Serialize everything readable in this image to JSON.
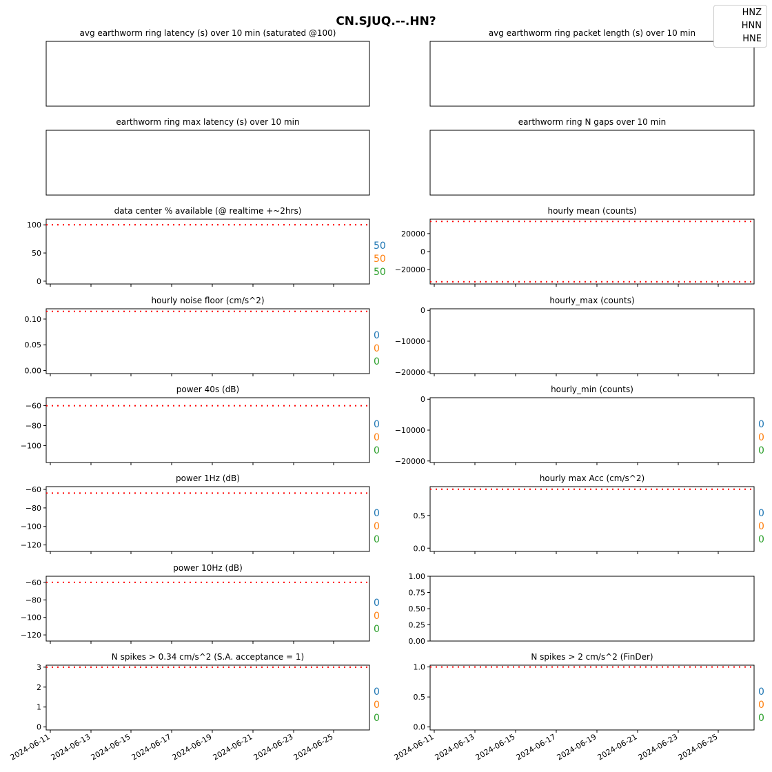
{
  "title": "CN.SJUQ.--.HN?",
  "legend": [
    "HNZ",
    "HNN",
    "HNE"
  ],
  "colors": {
    "HNZ": "#1f77b4",
    "HNN": "#ff7f0e",
    "HNE": "#2ca02c",
    "threshold": "#ff0000"
  },
  "chart_data": [
    {
      "type": "line",
      "title": "avg earthworm ring latency (s)   over 10 min (saturated @100)",
      "series": []
    },
    {
      "type": "line",
      "title": "avg earthworm ring packet length (s)   over 10 min",
      "series": []
    },
    {
      "type": "line",
      "title": "earthworm ring max latency (s)   over 10 min",
      "series": []
    },
    {
      "type": "line",
      "title": "earthworm ring N gaps   over 10 min",
      "series": []
    },
    {
      "type": "line",
      "title": "data center % available (@ realtime +~2hrs)",
      "ylim": [
        -5,
        110
      ],
      "yticks": [
        0,
        50,
        100
      ],
      "yticklabels": [
        "0",
        "50",
        "100"
      ],
      "threshold": [
        100
      ],
      "series": [],
      "channel_values": [
        "50",
        "50",
        "50"
      ]
    },
    {
      "type": "line",
      "title": "hourly mean (counts)",
      "ylim": [
        -36000,
        36000
      ],
      "yticks": [
        -20000,
        0,
        20000
      ],
      "yticklabels": [
        "−20000",
        "0",
        "20000"
      ],
      "threshold": [
        33500,
        -33500
      ],
      "series": []
    },
    {
      "type": "line",
      "title": "hourly noise floor (cm/s^2)",
      "ylim": [
        -0.006,
        0.12
      ],
      "yticks": [
        0.0,
        0.05,
        0.1
      ],
      "yticklabels": [
        "0.00",
        "0.05",
        "0.10"
      ],
      "threshold": [
        0.115
      ],
      "series": [],
      "channel_values": [
        "0",
        "0",
        "0"
      ]
    },
    {
      "type": "line",
      "title": "hourly_max (counts)",
      "ylim": [
        -20500,
        500
      ],
      "yticks": [
        -20000,
        -10000,
        0
      ],
      "yticklabels": [
        "−20000",
        "−10000",
        "0"
      ],
      "series": []
    },
    {
      "type": "line",
      "title": "power 40s (dB)",
      "ylim": [
        -117,
        -52
      ],
      "yticks": [
        -100,
        -80,
        -60
      ],
      "yticklabels": [
        "−100",
        "−80",
        "−60"
      ],
      "threshold": [
        -60
      ],
      "series": [],
      "channel_values": [
        "0",
        "0",
        "0"
      ]
    },
    {
      "type": "line",
      "title": "hourly_min (counts)",
      "ylim": [
        -20500,
        500
      ],
      "yticks": [
        -20000,
        -10000,
        0
      ],
      "yticklabels": [
        "−20000",
        "−10000",
        "0"
      ],
      "series": [],
      "channel_values": [
        "0",
        "0",
        "0"
      ]
    },
    {
      "type": "line",
      "title": "power 1Hz (dB)",
      "ylim": [
        -127,
        -57
      ],
      "yticks": [
        -120,
        -100,
        -80,
        -60
      ],
      "yticklabels": [
        "−120",
        "−100",
        "−80",
        "−60"
      ],
      "threshold": [
        -64
      ],
      "series": [],
      "channel_values": [
        "0",
        "0",
        "0"
      ]
    },
    {
      "type": "line",
      "title": "hourly max Acc (cm/s^2)",
      "ylim": [
        -0.05,
        0.94
      ],
      "yticks": [
        0.0,
        0.5
      ],
      "yticklabels": [
        "0.0",
        "0.5"
      ],
      "threshold": [
        0.9
      ],
      "series": [],
      "channel_values": [
        "0",
        "0",
        "0"
      ]
    },
    {
      "type": "line",
      "title": "power 10Hz (dB)",
      "ylim": [
        -127,
        -53
      ],
      "yticks": [
        -120,
        -100,
        -80,
        -60
      ],
      "yticklabels": [
        "−120",
        "−100",
        "−80",
        "−60"
      ],
      "threshold": [
        -60
      ],
      "series": [],
      "channel_values": [
        "0",
        "0",
        "0"
      ]
    },
    {
      "type": "line",
      "title": "",
      "ylim": [
        0,
        1
      ],
      "yticks": [
        0,
        0.25,
        0.5,
        0.75,
        1.0
      ],
      "yticklabels": [
        "0.00",
        "0.25",
        "0.50",
        "0.75",
        "1.00"
      ],
      "series": []
    },
    {
      "type": "line",
      "title": "N spikes > 0.34 cm/s^2 (S.A. acceptance = 1)",
      "ylim": [
        -0.15,
        3.1
      ],
      "yticks": [
        0,
        1,
        2,
        3
      ],
      "yticklabels": [
        "0",
        "1",
        "2",
        "3"
      ],
      "threshold": [
        3
      ],
      "series": [],
      "channel_values": [
        "0",
        "0",
        "0"
      ],
      "xticklabels": [
        "2024-06-11",
        "2024-06-13",
        "2024-06-15",
        "2024-06-17",
        "2024-06-19",
        "2024-06-21",
        "2024-06-23",
        "2024-06-25"
      ]
    },
    {
      "type": "line",
      "title": "N spikes > 2 cm/s^2 (FinDer)",
      "ylim": [
        -0.05,
        1.03
      ],
      "yticks": [
        0.0,
        0.5,
        1.0
      ],
      "yticklabels": [
        "0.0",
        "0.5",
        "1.0"
      ],
      "threshold": [
        1
      ],
      "series": [],
      "channel_values": [
        "0",
        "0",
        "0"
      ],
      "xticklabels": [
        "2024-06-11",
        "2024-06-13",
        "2024-06-15",
        "2024-06-17",
        "2024-06-19",
        "2024-06-21",
        "2024-06-23",
        "2024-06-25"
      ]
    }
  ]
}
